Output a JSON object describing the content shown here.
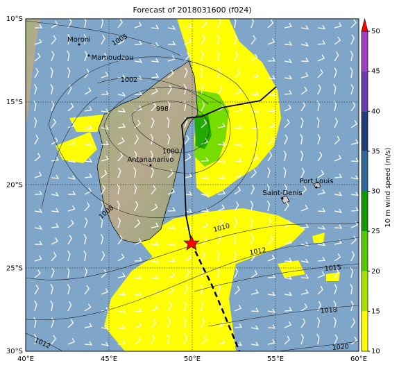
{
  "title": "Forecast of 2018031600 (f024)",
  "lat_labels": [
    "10°S",
    "15°S",
    "20°S",
    "25°S",
    "30°S"
  ],
  "lon_labels": [
    "40°E",
    "45°E",
    "50°E",
    "55°E",
    "60°E"
  ],
  "cities": [
    "Moroni",
    "Mamoudzou",
    "Antananarivo",
    "Saint-Denis",
    "Port Louis"
  ],
  "contour_labels": [
    "1005",
    "1002",
    "998",
    "1000",
    "1008",
    "1010",
    "1012",
    "1015",
    "1018",
    "1020",
    "1012"
  ],
  "colorbar": {
    "label": "10 m wind speed (m/s)",
    "ticks": [
      10,
      15,
      20,
      25,
      30,
      35,
      40,
      45,
      50
    ]
  }
}
